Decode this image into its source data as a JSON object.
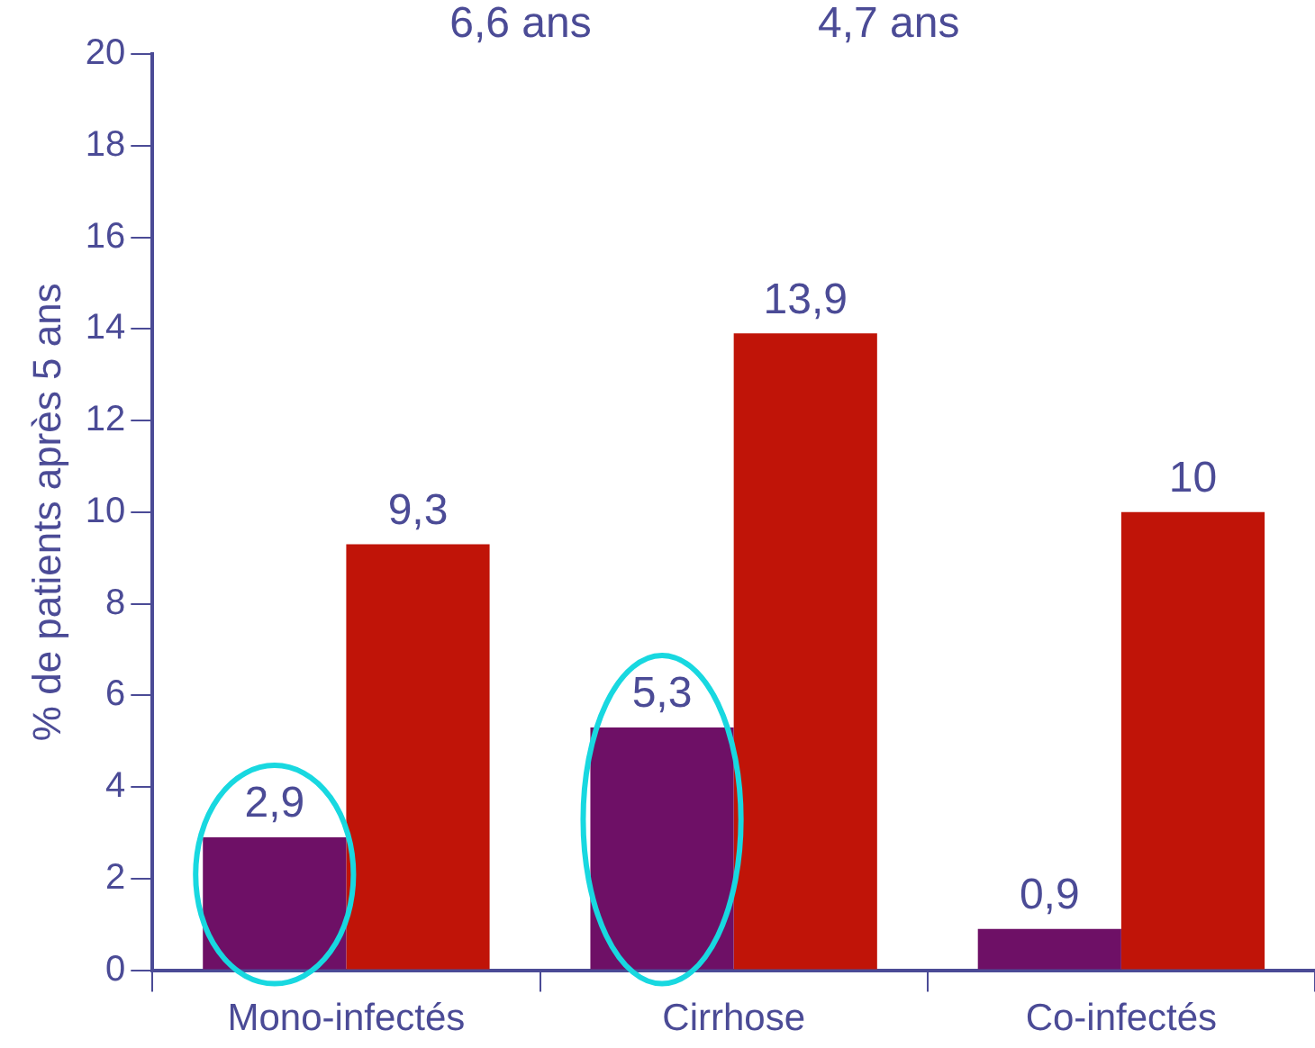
{
  "chart_data": {
    "type": "bar",
    "ylabel": "% de patients après 5 ans",
    "categories": [
      "Mono-infectés",
      "Cirrhose",
      "Co-infectés"
    ],
    "series": [
      {
        "color": "#6e1066",
        "values": [
          2.9,
          5.3,
          0.9
        ],
        "value_labels": [
          "2,9",
          "5,3",
          "0,9"
        ]
      },
      {
        "color": "#c01408",
        "values": [
          9.3,
          13.9,
          10
        ],
        "value_labels": [
          "9,3",
          "13,9",
          "10"
        ]
      }
    ],
    "ylim": [
      0,
      20
    ],
    "yticks": [
      0,
      2,
      4,
      6,
      8,
      10,
      12,
      14,
      16,
      18,
      20
    ],
    "grid": false,
    "legend": false,
    "annotations": [
      "6,6 ans",
      "4,7 ans"
    ]
  }
}
